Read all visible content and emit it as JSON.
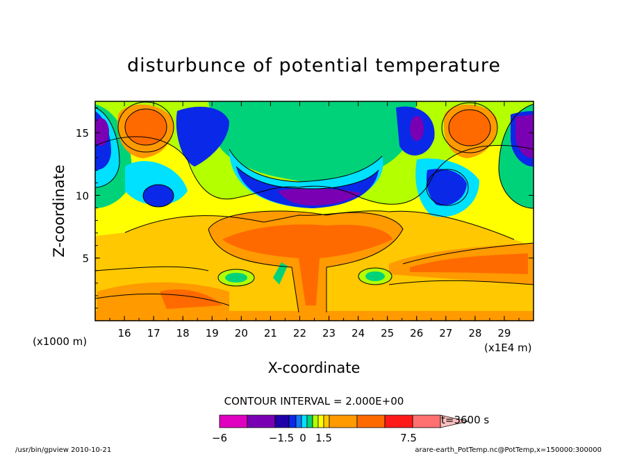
{
  "chart_data": {
    "type": "heatmap",
    "title": "disturbunce of potential temperature",
    "xlabel": "X-coordinate",
    "ylabel": "Z-coordinate",
    "x_unit": "(x1E4 m)",
    "y_unit": "(x1000 m)",
    "x_ticks": [
      16,
      17,
      18,
      19,
      20,
      21,
      22,
      23,
      24,
      25,
      26,
      27,
      28,
      29
    ],
    "y_ticks": [
      5,
      10,
      15
    ],
    "xlim": [
      15,
      30
    ],
    "ylim": [
      0,
      17.5
    ],
    "contour_interval": "CONTOUR INTERVAL = 2.000E+00",
    "colorbar_labels": [
      "−6",
      "−1.5",
      "0",
      "1.5",
      "7.5"
    ],
    "colorbar_colors": [
      "#e000c0",
      "#7a00b4",
      "#1f00a8",
      "#0a28e8",
      "#1478ff",
      "#00e0ff",
      "#00d27a",
      "#b4ff00",
      "#ffff00",
      "#ffc800",
      "#ff9a00",
      "#ff6a00",
      "#ff1a1a",
      "#ff7070",
      "#ffc0c0"
    ],
    "time_label": "t=3600 s",
    "footer_left": "/usr/bin/gpview   2010-10-21",
    "footer_right": "arare-earth_PotTemp.nc@PotTemp,x=150000:300000",
    "features": [
      {
        "x": 16.93,
        "z": 15.0,
        "value": 6
      },
      {
        "x": 27.9,
        "z": 15.0,
        "value": 6
      },
      {
        "x": 15.0,
        "z": 14.5,
        "value": -4
      },
      {
        "x": 29.8,
        "z": 14.5,
        "value": -5
      },
      {
        "x": 18.0,
        "z": 10.6,
        "value": -2
      },
      {
        "x": 27.2,
        "z": 10.3,
        "value": -2
      },
      {
        "x": 25.9,
        "z": 15.4,
        "value": -4
      },
      {
        "x": 22.9,
        "z": 9.6,
        "value": -5
      },
      {
        "x": 22.1,
        "z": 6.3,
        "value": 5
      },
      {
        "x": 22.5,
        "z": 3.3,
        "value": 5
      },
      {
        "x": 20.0,
        "z": 3.3,
        "value": 0
      },
      {
        "x": 24.6,
        "z": 3.3,
        "value": 0
      },
      {
        "x": 17.6,
        "z": 2.0,
        "value": 4.5
      },
      {
        "x": 27.2,
        "z": 4.5,
        "value": 4.5
      },
      {
        "x": 22.6,
        "z": 15.0,
        "value": 0.5
      }
    ]
  }
}
